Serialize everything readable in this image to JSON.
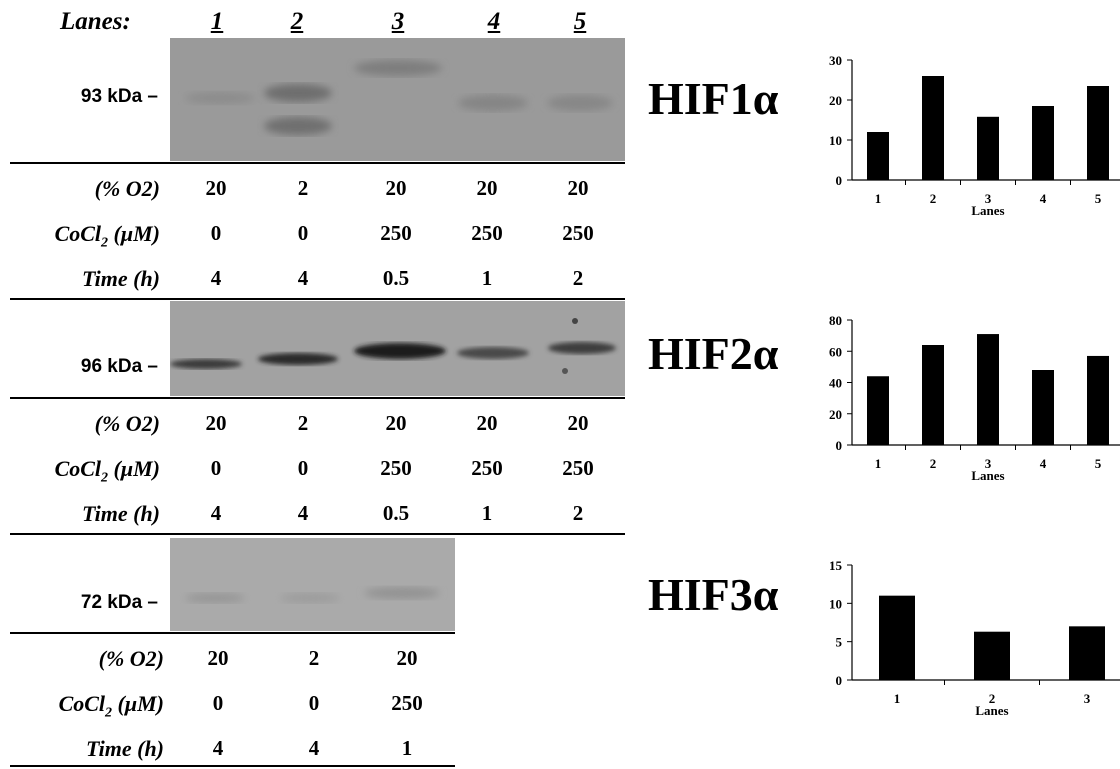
{
  "lanes_header": {
    "label": "Lanes:",
    "numbers": [
      "1",
      "2",
      "3",
      "4",
      "5"
    ]
  },
  "condition_labels": {
    "o2": "(% O2)",
    "cocl2": "CoCl",
    "cocl2_sub": "2",
    "cocl2_unit": " (μM)",
    "time": "Time (h)"
  },
  "panels": [
    {
      "protein": "HIF1α",
      "kda": "93 kDa –",
      "o2": [
        "20",
        "2",
        "20",
        "20",
        "20"
      ],
      "cocl2": [
        "0",
        "0",
        "250",
        "250",
        "250"
      ],
      "time": [
        "4",
        "4",
        "0.5",
        "1",
        "2"
      ]
    },
    {
      "protein": "HIF2α",
      "kda": "96 kDa –",
      "o2": [
        "20",
        "2",
        "20",
        "20",
        "20"
      ],
      "cocl2": [
        "0",
        "0",
        "250",
        "250",
        "250"
      ],
      "time": [
        "4",
        "4",
        "0.5",
        "1",
        "2"
      ]
    },
    {
      "protein": "HIF3α",
      "kda": "72 kDa –",
      "o2": [
        "20",
        "2",
        "20"
      ],
      "cocl2": [
        "0",
        "0",
        "250"
      ],
      "time": [
        "4",
        "4",
        "1"
      ]
    }
  ],
  "chart_data": [
    {
      "type": "bar",
      "categories": [
        "1",
        "2",
        "3",
        "4",
        "5"
      ],
      "values": [
        12,
        26,
        15.8,
        18.5,
        23.5
      ],
      "xlabel": "Lanes",
      "ylabel": "",
      "ylim": [
        0,
        30
      ],
      "yticks": [
        0,
        10,
        20,
        30
      ]
    },
    {
      "type": "bar",
      "categories": [
        "1",
        "2",
        "3",
        "4",
        "5"
      ],
      "values": [
        44,
        64,
        71,
        48,
        57
      ],
      "xlabel": "Lanes",
      "ylabel": "",
      "ylim": [
        0,
        80
      ],
      "yticks": [
        0,
        20,
        40,
        60,
        80
      ]
    },
    {
      "type": "bar",
      "categories": [
        "1",
        "2",
        "3"
      ],
      "values": [
        11,
        6.3,
        7
      ],
      "xlabel": "Lanes",
      "ylabel": "",
      "ylim": [
        0,
        15
      ],
      "yticks": [
        0,
        5,
        10,
        15
      ]
    }
  ]
}
